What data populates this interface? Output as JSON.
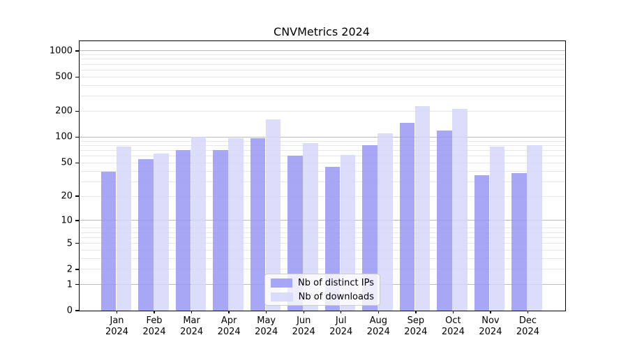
{
  "chart_data": {
    "type": "bar",
    "title": "CNVMetrics 2024",
    "x_months": [
      "Jan",
      "Feb",
      "Mar",
      "Apr",
      "May",
      "Jun",
      "Jul",
      "Aug",
      "Sep",
      "Oct",
      "Nov",
      "Dec"
    ],
    "x_year": "2024",
    "series": [
      {
        "name": "Nb of distinct IPs",
        "color": "#9898f5",
        "values": [
          39,
          55,
          71,
          70,
          97,
          61,
          45,
          80,
          148,
          119,
          36,
          38
        ]
      },
      {
        "name": "Nb of downloads",
        "color": "#d6d6fa",
        "values": [
          77,
          64,
          100,
          98,
          161,
          85,
          62,
          111,
          230,
          215,
          77,
          81
        ]
      }
    ],
    "yscale": "log10(1+x)",
    "yticks": [
      0,
      1,
      2,
      5,
      10,
      20,
      50,
      100,
      200,
      500,
      1000
    ],
    "ylim": [
      0,
      1296
    ],
    "grid": true,
    "legend_position": "lower center",
    "major_gridlines": [
      1,
      10,
      100,
      1000
    ],
    "minor_gridlines": [
      2,
      3,
      4,
      5,
      6,
      7,
      8,
      20,
      30,
      40,
      50,
      60,
      70,
      80,
      90,
      200,
      300,
      400,
      500,
      600,
      700,
      800,
      900
    ]
  },
  "style": {
    "axis_color": "#000000",
    "grid_major_color": "#bbbbbb",
    "grid_minor_color": "#e8e8e8",
    "legend_border_color": "#cccccc"
  }
}
